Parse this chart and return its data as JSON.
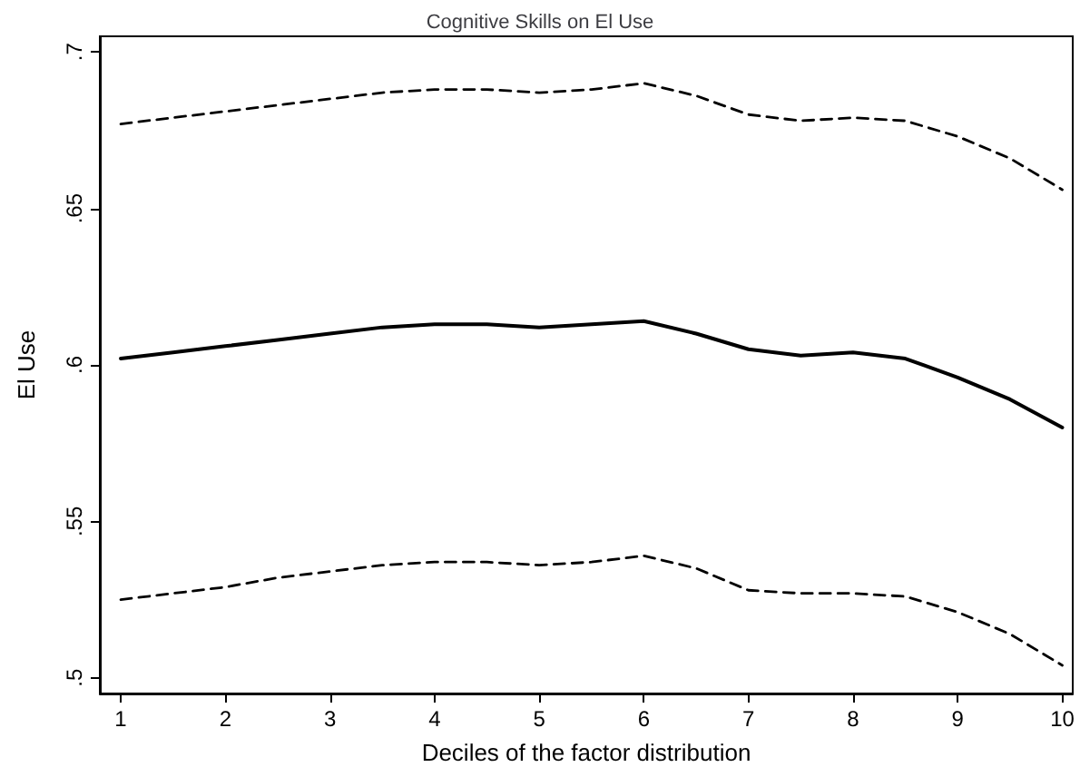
{
  "chart_data": {
    "type": "line",
    "title": "Cognitive Skills on El Use",
    "xlabel": "Deciles of the factor distribution",
    "ylabel": "El Use",
    "xlim": [
      0.8,
      10.1
    ],
    "xticks": [
      1,
      2,
      3,
      4,
      5,
      6,
      7,
      8,
      9,
      10
    ],
    "ylim": [
      0.495,
      0.705
    ],
    "yticks": [
      {
        "value": 0.5,
        "label": ".5"
      },
      {
        "value": 0.55,
        "label": ".55"
      },
      {
        "value": 0.6,
        "label": ".6"
      },
      {
        "value": 0.65,
        "label": ".65"
      },
      {
        "value": 0.7,
        "label": ".7"
      }
    ],
    "x": [
      1,
      1.5,
      2,
      2.5,
      3,
      3.5,
      4,
      4.5,
      5,
      5.5,
      6,
      6.5,
      7,
      7.5,
      8,
      8.5,
      9,
      9.5,
      10
    ],
    "grid": false,
    "marker": "none",
    "series": [
      {
        "color": "#000000",
        "line_style": "solid",
        "values": [
          0.602,
          0.604,
          0.606,
          0.608,
          0.61,
          0.612,
          0.613,
          0.613,
          0.612,
          0.613,
          0.614,
          0.61,
          0.605,
          0.603,
          0.604,
          0.602,
          0.596,
          0.589,
          0.58
        ]
      },
      {
        "color": "#000000",
        "line_style": "dashed",
        "values": [
          0.677,
          0.679,
          0.681,
          0.683,
          0.685,
          0.687,
          0.688,
          0.688,
          0.687,
          0.688,
          0.69,
          0.686,
          0.68,
          0.678,
          0.679,
          0.678,
          0.673,
          0.666,
          0.656
        ]
      },
      {
        "color": "#000000",
        "line_style": "dashed",
        "values": [
          0.525,
          0.527,
          0.529,
          0.532,
          0.534,
          0.536,
          0.537,
          0.537,
          0.536,
          0.537,
          0.539,
          0.535,
          0.528,
          0.527,
          0.527,
          0.526,
          0.521,
          0.514,
          0.504
        ]
      }
    ]
  }
}
